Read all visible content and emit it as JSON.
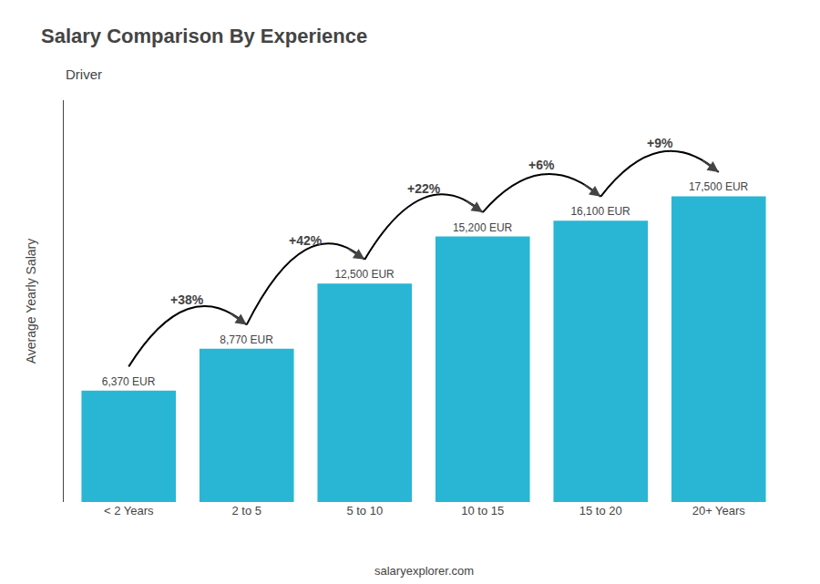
{
  "chart_data": {
    "type": "bar",
    "title": "Salary Comparison By Experience",
    "subtitle": "Driver",
    "categories": [
      "< 2 Years",
      "2 to 5",
      "5 to 10",
      "10 to 15",
      "15 to 20",
      "20+ Years"
    ],
    "values": [
      6370,
      8770,
      12500,
      15200,
      16100,
      17500
    ],
    "value_labels": [
      "6,370 EUR",
      "8,770 EUR",
      "12,500 EUR",
      "15,200 EUR",
      "16,100 EUR",
      "17,500 EUR"
    ],
    "data_labels": true,
    "color": "#29b6d4",
    "annotations": [
      "+38%",
      "+42%",
      "+22%",
      "+6%",
      "+9%"
    ],
    "ylabel": "Average Yearly Salary",
    "footer": "salaryexplorer.com",
    "ylim": [
      0,
      23000
    ],
    "yticks": [],
    "tick_labels": "x",
    "grid": false
  }
}
